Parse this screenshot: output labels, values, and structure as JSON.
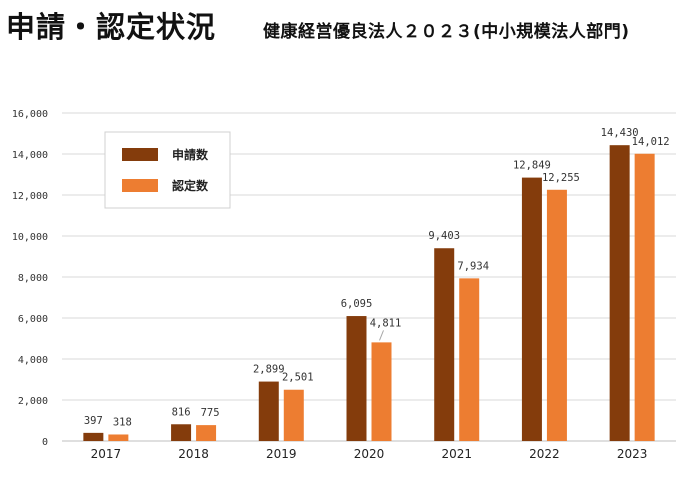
{
  "header": {
    "title": "申請・認定状況",
    "subtitle": "健康経営優良法人２０２３(中小規模法人部門)"
  },
  "chart_data": {
    "type": "bar",
    "title": "",
    "xlabel": "",
    "ylabel": "",
    "categories": [
      "2017",
      "2018",
      "2019",
      "2020",
      "2021",
      "2022",
      "2023"
    ],
    "ylim": [
      0,
      16000
    ],
    "yticks": [
      0,
      2000,
      4000,
      6000,
      8000,
      10000,
      12000,
      14000,
      16000
    ],
    "ytick_labels": [
      "0",
      "2,000",
      "4,000",
      "6,000",
      "8,000",
      "10,000",
      "12,000",
      "14,000",
      "16,000"
    ],
    "grid": true,
    "legend_position": "top-left",
    "series": [
      {
        "name": "申請数",
        "color": "#843c0c",
        "values": [
          397,
          816,
          2899,
          6095,
          9403,
          12849,
          14430
        ],
        "labels": [
          "397",
          "816",
          "2,899",
          "6,095",
          "9,403",
          "12,849",
          "14,430"
        ]
      },
      {
        "name": "認定数",
        "color": "#ed7d31",
        "values": [
          318,
          775,
          2501,
          4811,
          7934,
          12255,
          14012
        ],
        "labels": [
          "318",
          "775",
          "2,501",
          "4,811",
          "7,934",
          "12,255",
          "14,012"
        ],
        "highlight_last_label_color": "#ff0000"
      }
    ]
  }
}
